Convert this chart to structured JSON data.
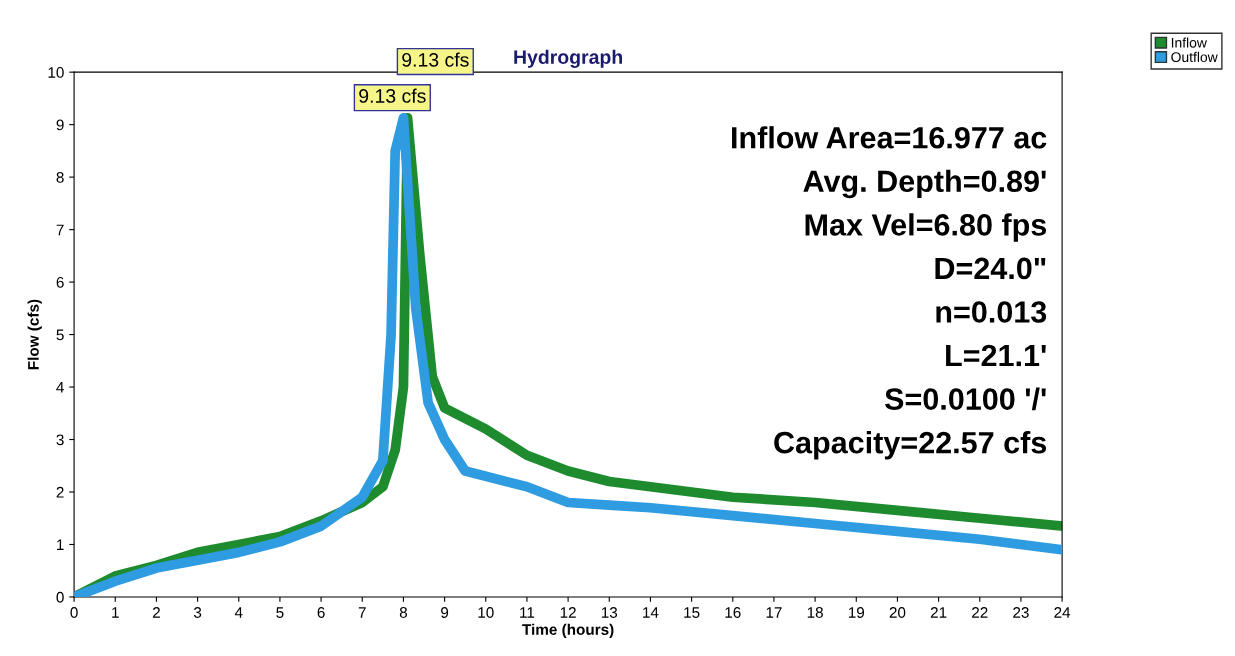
{
  "chart_data": {
    "type": "line",
    "title": "Hydrograph",
    "xlabel": "Time (hours)",
    "ylabel": "Flow (cfs)",
    "xlim": [
      0,
      24
    ],
    "xticks": [
      0,
      1,
      2,
      3,
      4,
      5,
      6,
      7,
      8,
      9,
      10,
      11,
      12,
      13,
      14,
      15,
      16,
      17,
      18,
      19,
      20,
      21,
      22,
      23,
      24
    ],
    "ylim": [
      0,
      10
    ],
    "yticks": [
      0,
      1,
      2,
      3,
      4,
      5,
      6,
      7,
      8,
      9,
      10
    ],
    "grid": false,
    "legend": "top right",
    "line_style": "solid",
    "series": [
      {
        "name": "Inflow",
        "color": "#1e8c2e",
        "x": [
          0,
          1,
          2,
          3,
          4,
          5,
          6,
          7,
          7.5,
          7.8,
          8,
          8.1,
          8.4,
          8.7,
          9,
          10,
          11,
          12,
          13,
          14,
          16,
          18,
          20,
          22,
          24
        ],
        "values": [
          0,
          0.4,
          0.6,
          0.85,
          1.0,
          1.15,
          1.45,
          1.8,
          2.1,
          2.8,
          4,
          9.13,
          6.5,
          4.2,
          3.6,
          3.2,
          2.7,
          2.4,
          2.2,
          2.1,
          1.9,
          1.8,
          1.65,
          1.5,
          1.35
        ]
      },
      {
        "name": "Outflow",
        "color": "#2f9be0",
        "x": [
          0,
          1,
          2,
          3,
          4,
          5,
          6,
          7,
          7.5,
          7.7,
          7.8,
          8,
          8.3,
          8.6,
          9,
          9.5,
          10,
          11,
          12,
          13,
          14,
          16,
          18,
          20,
          22,
          24
        ],
        "values": [
          0,
          0.3,
          0.55,
          0.7,
          0.85,
          1.05,
          1.35,
          1.9,
          2.6,
          5,
          8.5,
          9.13,
          5.5,
          3.7,
          3.0,
          2.4,
          2.3,
          2.1,
          1.8,
          1.75,
          1.7,
          1.55,
          1.4,
          1.25,
          1.1,
          0.9
        ]
      }
    ],
    "annotations": [
      {
        "text": "9.13 cfs",
        "x": 8.1,
        "y": 9.13
      },
      {
        "text": "9.13 cfs",
        "x": 8,
        "y": 9.13
      },
      "Inflow Area=16.977 ac",
      "Avg. Depth=0.89'",
      "Max Vel=6.80 fps",
      "D=24.0\"",
      "n=0.013",
      "L=21.1'",
      "S=0.0100 '/'",
      "Capacity=22.57 cfs"
    ]
  }
}
